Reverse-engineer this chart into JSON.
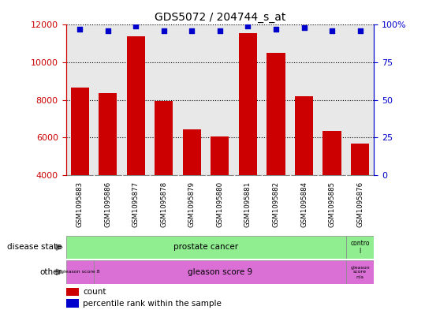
{
  "title": "GDS5072 / 204744_s_at",
  "samples": [
    "GSM1095883",
    "GSM1095886",
    "GSM1095877",
    "GSM1095878",
    "GSM1095879",
    "GSM1095880",
    "GSM1095881",
    "GSM1095882",
    "GSM1095884",
    "GSM1095885",
    "GSM1095876"
  ],
  "counts": [
    8650,
    8350,
    11400,
    7950,
    6450,
    6050,
    11550,
    10500,
    8200,
    6350,
    5700
  ],
  "percentile_ranks": [
    97,
    96,
    99,
    96,
    96,
    96,
    99,
    97,
    98,
    96,
    96
  ],
  "ylim_left": [
    4000,
    12000
  ],
  "ylim_right": [
    0,
    100
  ],
  "yticks_left": [
    4000,
    6000,
    8000,
    10000,
    12000
  ],
  "yticks_right": [
    0,
    25,
    50,
    75,
    100
  ],
  "bar_color": "#cc0000",
  "dot_color": "#0000cc",
  "bg_color": "#ffffff",
  "plot_bg": "#e8e8e8",
  "grid_color": "#000000",
  "label_color_left": "#cc0000",
  "label_color_right": "#0000cc",
  "disease_state_color": "#90ee90",
  "other_color": "#da70d6",
  "control_color": "#90ee90",
  "gleason_na_color": "#da70d6"
}
